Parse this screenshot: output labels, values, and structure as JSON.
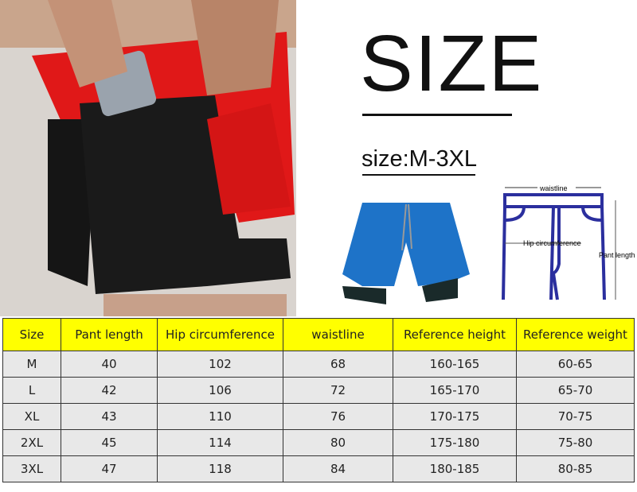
{
  "title": "SIZE",
  "size_range": "size:M-3XL",
  "diagram": {
    "waistline": "waistline",
    "hip": "Hip circumference",
    "pant_length": "Pant length"
  },
  "colors": {
    "header": "#ffff00",
    "shorts_outer": "#e01818",
    "diagram_stroke": "#2b2f9e",
    "blue_shorts": "#1e73c8"
  },
  "table": {
    "headers": [
      "Size",
      "Pant length",
      "Hip circumference",
      "waistline",
      "Reference height",
      "Reference weight"
    ],
    "rows": [
      [
        "M",
        "40",
        "102",
        "68",
        "160-165",
        "60-65"
      ],
      [
        "L",
        "42",
        "106",
        "72",
        "165-170",
        "65-70"
      ],
      [
        "XL",
        "43",
        "110",
        "76",
        "170-175",
        "70-75"
      ],
      [
        "2XL",
        "45",
        "114",
        "80",
        "175-180",
        "75-80"
      ],
      [
        "3XL",
        "47",
        "118",
        "84",
        "180-185",
        "80-85"
      ]
    ]
  }
}
